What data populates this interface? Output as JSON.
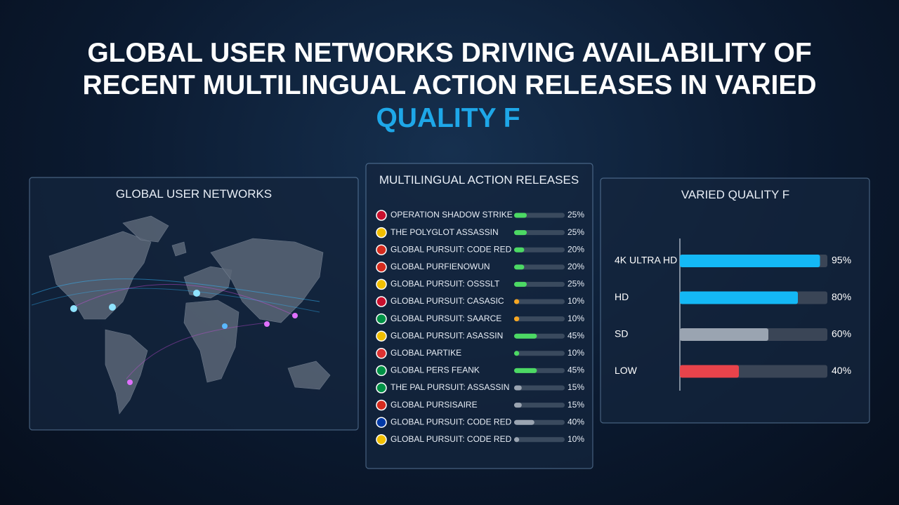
{
  "header": {
    "title_lines": [
      "GLOBAL USER NETWORKS DRIVING AVAILABILITY OF",
      "RECENT MULTILINGUAL ACTION RELEASES IN VARIED"
    ],
    "title_accent": "QUALITY F"
  },
  "networks": {
    "title": "GLOBAL USER NETWORKS"
  },
  "releases": {
    "title": "MULTILINGUAL ACTION RELEASES",
    "names": [
      "OPERATION SHADOW STRIKE",
      "THE POLYGLOT ASSASSIN",
      "GLOBAL PURSUIT: CODE RED",
      "GLOBAL PURFIENOWUN",
      "GLOBAL PURSUIT: OSSSLT",
      "GLOBAL PURSUIT: CASASIC",
      "GLOBAL PURSUIT: SAARCE",
      "GLOBAL PURSUIT: ASASSIN",
      "GLOBAL PARTIKE",
      "GLOBAL PERS FEANK",
      "THE PAL PURSUIT: ASSASSIN",
      "GLOBAL PURSISAIRE",
      "GLOBAL PURSUIT: CODE RED",
      "GLOBAL PURSUIT: CODE RED"
    ],
    "values": [
      25,
      25,
      20,
      20,
      25,
      10,
      10,
      45,
      10,
      45,
      15,
      15,
      40,
      10
    ],
    "value_labels": [
      "25%",
      "25%",
      "20%",
      "20%",
      "25%",
      "10%",
      "10%",
      "45%",
      "10%",
      "45%",
      "15%",
      "15%",
      "40%",
      "10%"
    ],
    "colors": [
      "#4cd964",
      "#4cd964",
      "#4cd964",
      "#4cd964",
      "#4cd964",
      "#f5a623",
      "#f5a623",
      "#4cd964",
      "#4cd964",
      "#4cd964",
      "#9aa4b1",
      "#9aa4b1",
      "#9aa4b1",
      "#9aa4b1"
    ],
    "xlim": [
      0,
      100
    ]
  },
  "quality": {
    "title": "VARIED QUALITY F",
    "categories": [
      "4K ULTRA HD",
      "HD",
      "SD",
      "LOW"
    ],
    "values": [
      95,
      80,
      60,
      40
    ],
    "value_labels": [
      "95%",
      "80%",
      "60%",
      "40%"
    ],
    "colors": [
      "#14b8f5",
      "#14b8f5",
      "#9aa4b1",
      "#e8434b"
    ],
    "xlim": [
      0,
      100
    ]
  }
}
